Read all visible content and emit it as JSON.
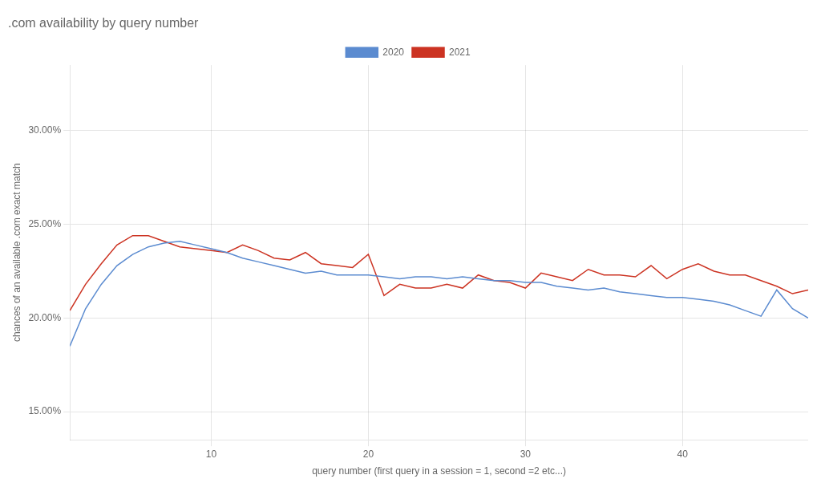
{
  "chart_data": {
    "type": "line",
    "title": ".com availability by query number",
    "xlabel": "query number (first query in a session = 1, second =2 etc...)",
    "ylabel": "chances of an available .com exact match",
    "x": [
      1,
      2,
      3,
      4,
      5,
      6,
      7,
      8,
      9,
      10,
      11,
      12,
      13,
      14,
      15,
      16,
      17,
      18,
      19,
      20,
      21,
      22,
      23,
      24,
      25,
      26,
      27,
      28,
      29,
      30,
      31,
      32,
      33,
      34,
      35,
      36,
      37,
      38,
      39,
      40,
      41,
      42,
      43,
      44,
      45,
      46,
      47,
      48
    ],
    "series": [
      {
        "name": "2020",
        "color": "#5b8bd0",
        "values": [
          0.185,
          0.205,
          0.218,
          0.228,
          0.234,
          0.238,
          0.24,
          0.241,
          0.239,
          0.237,
          0.235,
          0.232,
          0.23,
          0.228,
          0.226,
          0.224,
          0.225,
          0.223,
          0.223,
          0.223,
          0.222,
          0.221,
          0.222,
          0.222,
          0.221,
          0.222,
          0.221,
          0.22,
          0.22,
          0.219,
          0.219,
          0.217,
          0.216,
          0.215,
          0.216,
          0.214,
          0.213,
          0.212,
          0.211,
          0.211,
          0.21,
          0.209,
          0.207,
          0.204,
          0.201,
          0.215,
          0.205,
          0.2
        ]
      },
      {
        "name": "2021",
        "color": "#cc3322",
        "values": [
          0.204,
          0.218,
          0.229,
          0.239,
          0.244,
          0.244,
          0.241,
          0.238,
          0.237,
          0.236,
          0.235,
          0.239,
          0.236,
          0.232,
          0.231,
          0.235,
          0.229,
          0.228,
          0.227,
          0.234,
          0.212,
          0.218,
          0.216,
          0.216,
          0.218,
          0.216,
          0.223,
          0.22,
          0.219,
          0.216,
          0.224,
          0.222,
          0.22,
          0.226,
          0.223,
          0.223,
          0.222,
          0.228,
          0.221,
          0.226,
          0.229,
          0.225,
          0.223,
          0.223,
          0.22,
          0.217,
          0.213,
          0.215
        ]
      }
    ],
    "xlim": [
      1,
      48
    ],
    "xticks": [
      10,
      20,
      30,
      40
    ],
    "ylim": [
      0.135,
      0.335
    ],
    "yticks": [
      {
        "value": 0.15,
        "label": "15.00%"
      },
      {
        "value": 0.2,
        "label": "20.00%"
      },
      {
        "value": 0.25,
        "label": "25.00%"
      },
      {
        "value": 0.3,
        "label": "30.00%"
      }
    ],
    "grid": true,
    "legend": "top"
  }
}
